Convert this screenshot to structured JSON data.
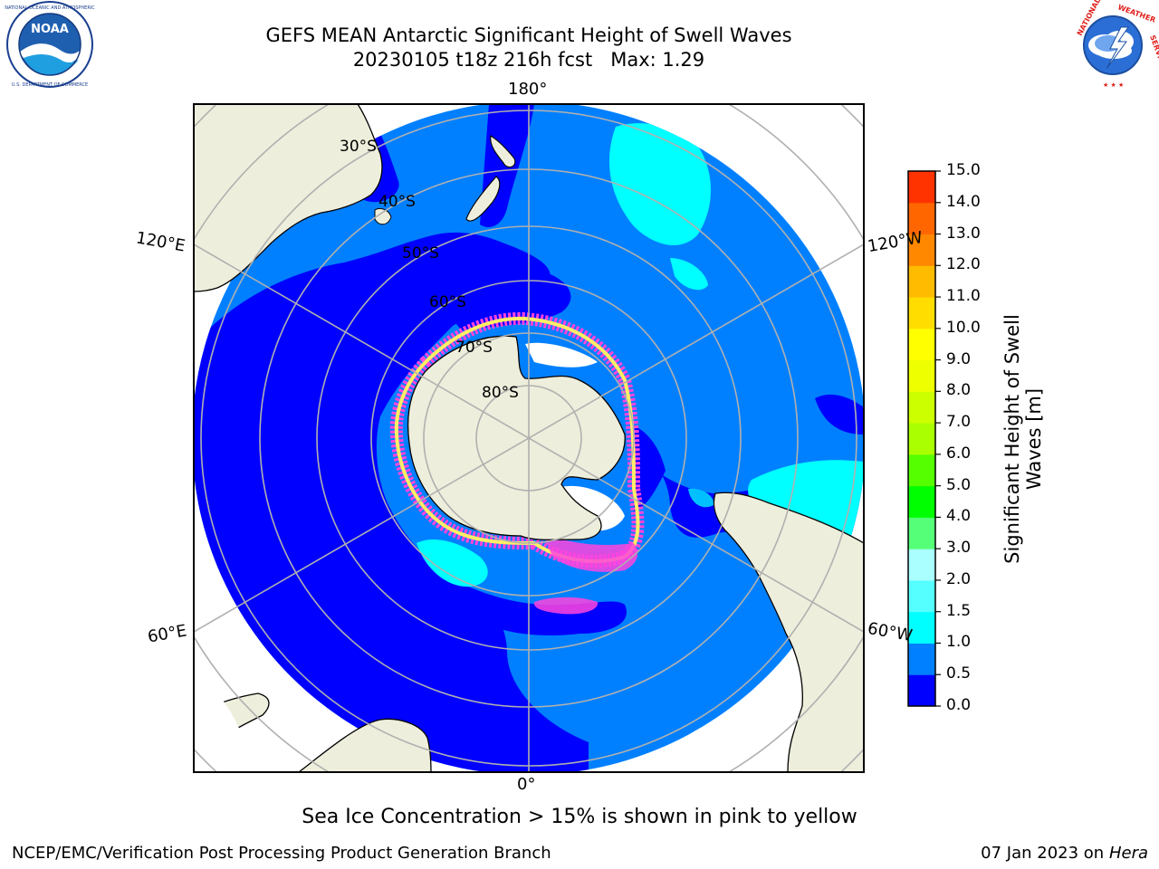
{
  "title": {
    "line1": "GEFS MEAN Antarctic Significant Height of Swell Waves",
    "line2": "20230105 t18z 216h fcst   Max: 1.29"
  },
  "logos": {
    "noaa": {
      "text": "NOAA",
      "ring_text": "NATIONAL OCEANIC AND ATMOSPHERIC ADMINISTRATION · U.S. DEPARTMENT OF COMMERCE"
    },
    "nws": {
      "ring_text": "NATIONAL WEATHER SERVICE"
    }
  },
  "map": {
    "projection": "south-polar-stereographic",
    "lon_labels": {
      "top": "180°",
      "bottom": "0°",
      "left_upper": "120°E",
      "right_upper": "120°W",
      "left_lower": "60°E",
      "right_lower": "60°W"
    },
    "lat_labels": [
      "30°S",
      "40°S",
      "50°S",
      "60°S",
      "70°S",
      "80°S"
    ],
    "colors": {
      "land": "#eeeedc",
      "ocean_low": "#0000ff",
      "ocean_mid": "#0080ff",
      "swell_cyan": "#00ffff",
      "ice_pink": "#ff44dd",
      "ice_yellow": "#ffee66",
      "grid": "#b0b0b0"
    }
  },
  "colorbar": {
    "label": "Significant Height of Swell Waves [m]",
    "ticks": [
      "0.0",
      "0.5",
      "1.0",
      "1.5",
      "2.0",
      "3.0",
      "4.0",
      "5.0",
      "6.0",
      "7.0",
      "8.0",
      "9.0",
      "10.0",
      "11.0",
      "12.0",
      "13.0",
      "14.0",
      "15.0"
    ],
    "colors": [
      "#0000ff",
      "#0080ff",
      "#00ffff",
      "#55ffff",
      "#aaffff",
      "#55ff77",
      "#00ff00",
      "#55ff00",
      "#aaff00",
      "#ccff00",
      "#eeff00",
      "#ffff00",
      "#ffdd00",
      "#ffbb00",
      "#ff8800",
      "#ff6600",
      "#ff3300",
      "#ff0000"
    ]
  },
  "note": "Sea Ice Concentration > 15% is shown in pink to yellow",
  "footer": {
    "left": "NCEP/EMC/Verification Post Processing Product Generation Branch",
    "date": "07 Jan 2023 on",
    "machine": "Hera"
  }
}
